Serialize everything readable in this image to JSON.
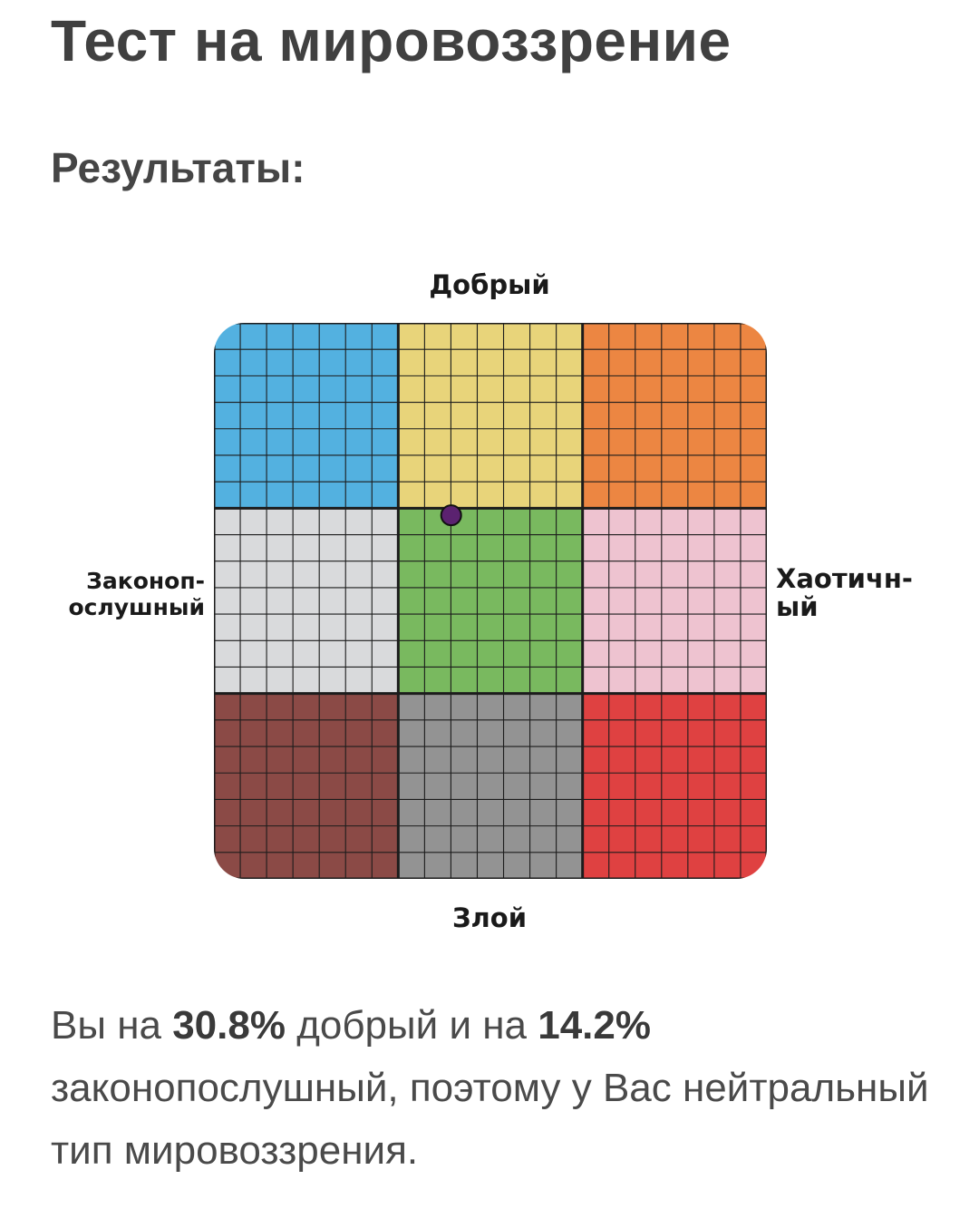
{
  "page": {
    "title": "Тест на мировоззрение",
    "results_heading": "Результаты:"
  },
  "chart_data": {
    "type": "scatter",
    "title": "",
    "axes": {
      "top": "Добрый",
      "bottom": "Злой",
      "left_line1": "Законоп-",
      "left_line2": "ослушный",
      "right_line1": "Хаотичн-",
      "right_line2": "ый"
    },
    "grid_size": 21,
    "zones": [
      {
        "row": 0,
        "col": 0,
        "color": "#53b1e0"
      },
      {
        "row": 0,
        "col": 1,
        "color": "#e8d47a"
      },
      {
        "row": 0,
        "col": 2,
        "color": "#ec8642"
      },
      {
        "row": 1,
        "col": 0,
        "color": "#d9dadc"
      },
      {
        "row": 1,
        "col": 1,
        "color": "#79b95f"
      },
      {
        "row": 1,
        "col": 2,
        "color": "#eec3d0"
      },
      {
        "row": 2,
        "col": 0,
        "color": "#8b4a46"
      },
      {
        "row": 2,
        "col": 1,
        "color": "#939393"
      },
      {
        "row": 2,
        "col": 2,
        "color": "#df4141"
      }
    ],
    "point": {
      "good_percent": 30.8,
      "lawful_percent": 14.2,
      "color": "#5b2270"
    },
    "x_range": [
      -100,
      100
    ],
    "y_range": [
      -100,
      100
    ],
    "grid": true
  },
  "result": {
    "prefix": "Вы на ",
    "good_value": "30.8%",
    "middle1": " добрый и на ",
    "lawful_value": "14.2%",
    "suffix": " законопослушный, поэтому у Вас нейтральный тип мировоззрения."
  }
}
